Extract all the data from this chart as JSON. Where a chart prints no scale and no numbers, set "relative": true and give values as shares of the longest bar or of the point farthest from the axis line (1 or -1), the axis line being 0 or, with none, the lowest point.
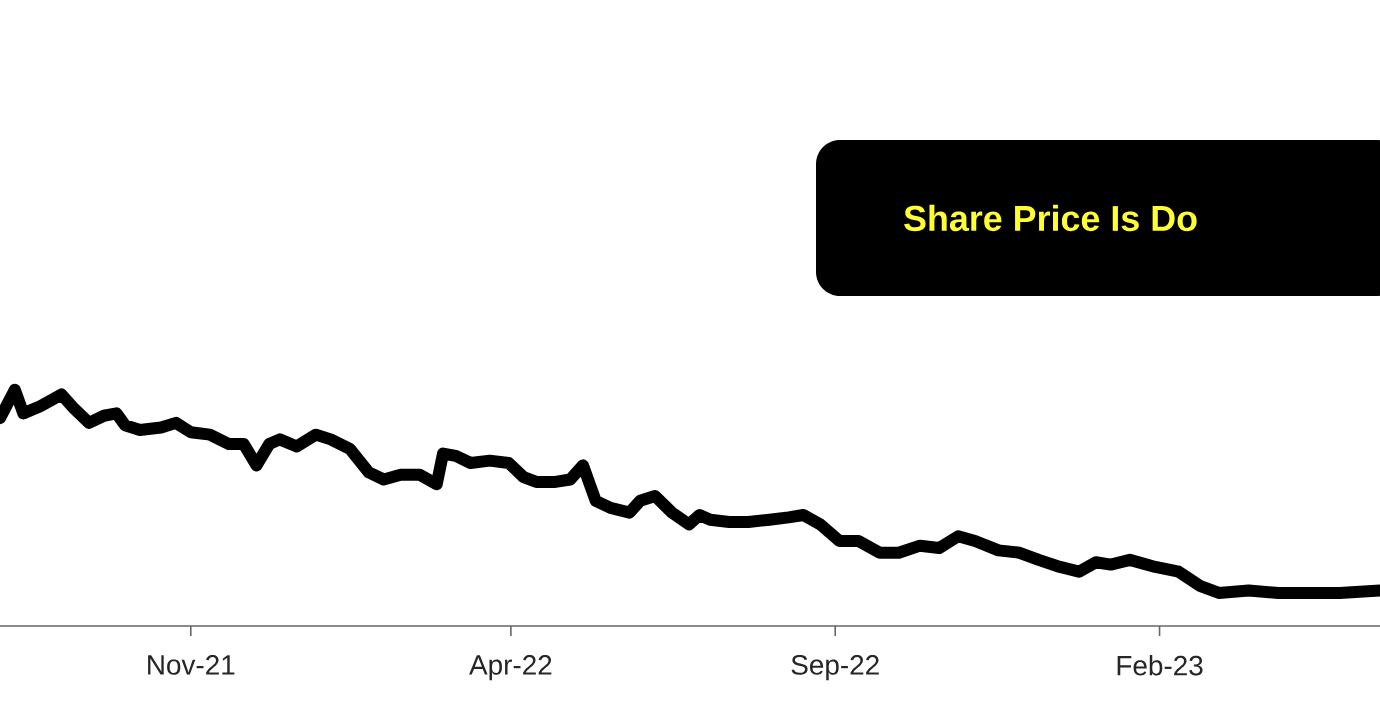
{
  "chart_data": {
    "type": "line",
    "title": "Share Price Is Do",
    "relative": true,
    "marker": "none",
    "line_style": "solid",
    "xlim": [
      "2021-08-03",
      "2023-05-16"
    ],
    "xticks": [
      {
        "value": "2021-11-01",
        "label": "Nov-21"
      },
      {
        "value": "2022-04-01",
        "label": "Apr-22"
      },
      {
        "value": "2022-09-01",
        "label": "Sep-22"
      },
      {
        "value": "2023-02-01",
        "label": "Feb-23"
      }
    ],
    "x": [
      "2021-08-03",
      "2021-08-10",
      "2021-08-14",
      "2021-08-22",
      "2021-09-01",
      "2021-09-07",
      "2021-09-14",
      "2021-09-21",
      "2021-09-27",
      "2021-10-01",
      "2021-10-08",
      "2021-10-18",
      "2021-10-25",
      "2021-11-01",
      "2021-11-10",
      "2021-11-19",
      "2021-11-26",
      "2021-12-02",
      "2021-12-08",
      "2021-12-13",
      "2021-12-21",
      "2021-12-30",
      "2022-01-06",
      "2022-01-15",
      "2022-01-24",
      "2022-01-31",
      "2022-02-08",
      "2022-02-17",
      "2022-02-25",
      "2022-02-28",
      "2022-03-06",
      "2022-03-13",
      "2022-03-22",
      "2022-03-31",
      "2022-04-07",
      "2022-04-13",
      "2022-04-22",
      "2022-04-29",
      "2022-05-05",
      "2022-05-11",
      "2022-05-18",
      "2022-05-27",
      "2022-06-01",
      "2022-06-08",
      "2022-06-16",
      "2022-06-24",
      "2022-06-29",
      "2022-07-04",
      "2022-07-13",
      "2022-07-22",
      "2022-08-01",
      "2022-08-10",
      "2022-08-17",
      "2022-08-25",
      "2022-09-03",
      "2022-09-12",
      "2022-09-22",
      "2022-10-01",
      "2022-10-11",
      "2022-10-20",
      "2022-10-29",
      "2022-11-06",
      "2022-11-17",
      "2022-11-27",
      "2022-12-06",
      "2022-12-16",
      "2022-12-25",
      "2023-01-02",
      "2023-01-09",
      "2023-01-18",
      "2023-01-30",
      "2023-02-10",
      "2023-02-20",
      "2023-03-01",
      "2023-03-15",
      "2023-03-29",
      "2023-04-13",
      "2023-04-27",
      "2023-05-16"
    ],
    "series": [
      {
        "color": "#000000",
        "values": [
          0.88,
          1.0,
          0.9,
          0.93,
          0.98,
          0.92,
          0.86,
          0.89,
          0.9,
          0.85,
          0.83,
          0.84,
          0.86,
          0.82,
          0.81,
          0.77,
          0.77,
          0.68,
          0.77,
          0.79,
          0.76,
          0.81,
          0.79,
          0.75,
          0.65,
          0.62,
          0.64,
          0.64,
          0.6,
          0.73,
          0.72,
          0.69,
          0.7,
          0.69,
          0.63,
          0.61,
          0.61,
          0.62,
          0.68,
          0.53,
          0.5,
          0.48,
          0.53,
          0.55,
          0.48,
          0.43,
          0.47,
          0.45,
          0.44,
          0.44,
          0.45,
          0.46,
          0.47,
          0.43,
          0.36,
          0.36,
          0.31,
          0.31,
          0.34,
          0.33,
          0.38,
          0.36,
          0.32,
          0.31,
          0.28,
          0.25,
          0.23,
          0.27,
          0.26,
          0.28,
          0.25,
          0.23,
          0.17,
          0.14,
          0.15,
          0.14,
          0.14,
          0.14,
          0.15
        ]
      }
    ]
  }
}
